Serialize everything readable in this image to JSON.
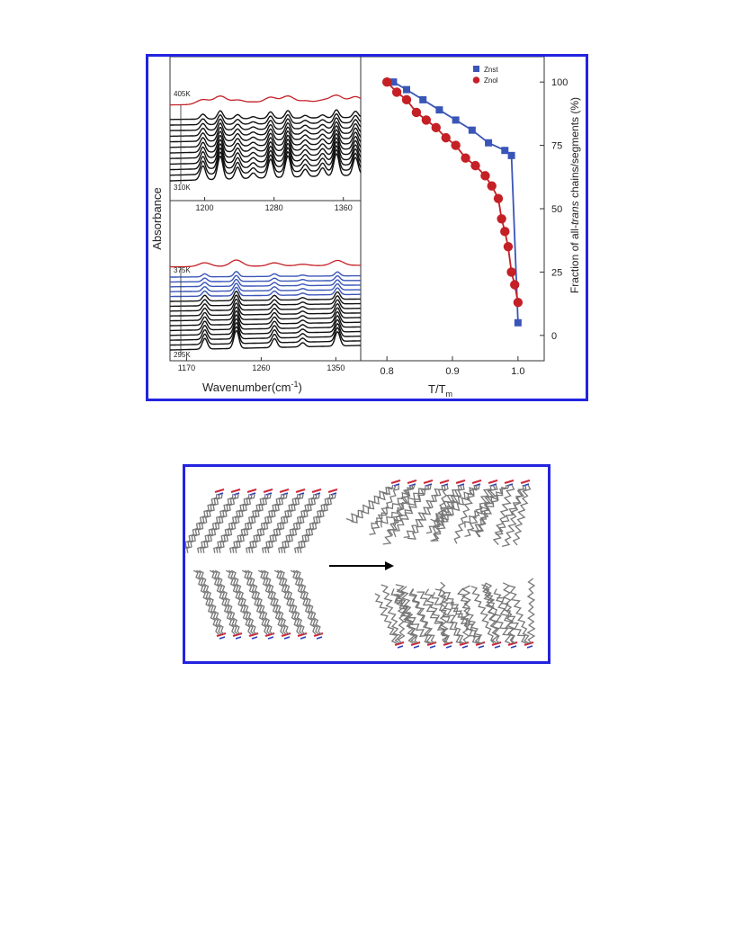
{
  "figure": {
    "spectra": {
      "ylabel": "Absorbance",
      "xlabel_main": "Wavenumber(cm",
      "xlabel_sup": "-1",
      "xlabel_close": ")",
      "upper": {
        "ticks": [
          1200,
          1280,
          1360
        ],
        "label_top": "405K",
        "label_bottom": "310K",
        "n_black": 12,
        "n_red": 1
      },
      "lower": {
        "ticks": [
          1170,
          1260,
          1350
        ],
        "label_top": "375K",
        "label_bottom": "295K",
        "n_black": 11,
        "n_blue": 5,
        "n_red": 1
      },
      "colors": {
        "black": "#111111",
        "blue": "#3a55b8",
        "red": "#c42026"
      }
    },
    "fraction_chart": {
      "ylabel_pre": "Fraction of all-",
      "ylabel_em": "trans",
      "ylabel_post": " chains/segments (%)",
      "xlabel_main": "T/T",
      "xlabel_sub": "m"
    }
  },
  "chart_data": [
    {
      "type": "line",
      "title": "",
      "xlabel": "Wavenumber(cm-1)",
      "ylabel": "Absorbance",
      "panel": "upper spectra",
      "x_ticks": [
        1200,
        1280,
        1360
      ],
      "xlim": [
        1160,
        1380
      ],
      "series_labels": [
        "405K",
        "310K"
      ],
      "peak_positions": [
        1198,
        1218,
        1238,
        1256,
        1276,
        1296,
        1316,
        1336,
        1352,
        1374
      ]
    },
    {
      "type": "line",
      "title": "",
      "xlabel": "Wavenumber(cm-1)",
      "ylabel": "Absorbance",
      "panel": "lower spectra",
      "x_ticks": [
        1170,
        1260,
        1350
      ],
      "xlim": [
        1150,
        1380
      ],
      "series_labels": [
        "375K",
        "295K"
      ],
      "peak_positions": [
        1192,
        1230,
        1276,
        1310,
        1352
      ]
    },
    {
      "type": "scatter",
      "title": "",
      "xlabel": "T/Tm",
      "ylabel": "Fraction of all-trans chains/segments (%)",
      "xlim": [
        0.76,
        1.04
      ],
      "ylim": [
        -10,
        110
      ],
      "x_ticks": [
        0.8,
        0.9,
        1.0
      ],
      "y_ticks": [
        0,
        25,
        50,
        75,
        100
      ],
      "legend_position": "top",
      "series": [
        {
          "name": "Znst",
          "color": "#3a55b8",
          "marker": "square",
          "x": [
            0.81,
            0.83,
            0.855,
            0.88,
            0.905,
            0.93,
            0.955,
            0.98,
            0.99,
            1.0
          ],
          "y": [
            100,
            97,
            93,
            89,
            85,
            81,
            76,
            73,
            71,
            5
          ]
        },
        {
          "name": "Znol",
          "color": "#c42026",
          "marker": "circle",
          "x": [
            0.8,
            0.815,
            0.83,
            0.845,
            0.86,
            0.875,
            0.89,
            0.905,
            0.92,
            0.935,
            0.95,
            0.96,
            0.97,
            0.975,
            0.98,
            0.985,
            0.99,
            0.995,
            1.0
          ],
          "y": [
            100,
            96,
            93,
            88,
            85,
            82,
            78,
            75,
            70,
            67,
            63,
            59,
            54,
            46,
            41,
            35,
            25,
            20,
            13
          ]
        }
      ]
    }
  ]
}
